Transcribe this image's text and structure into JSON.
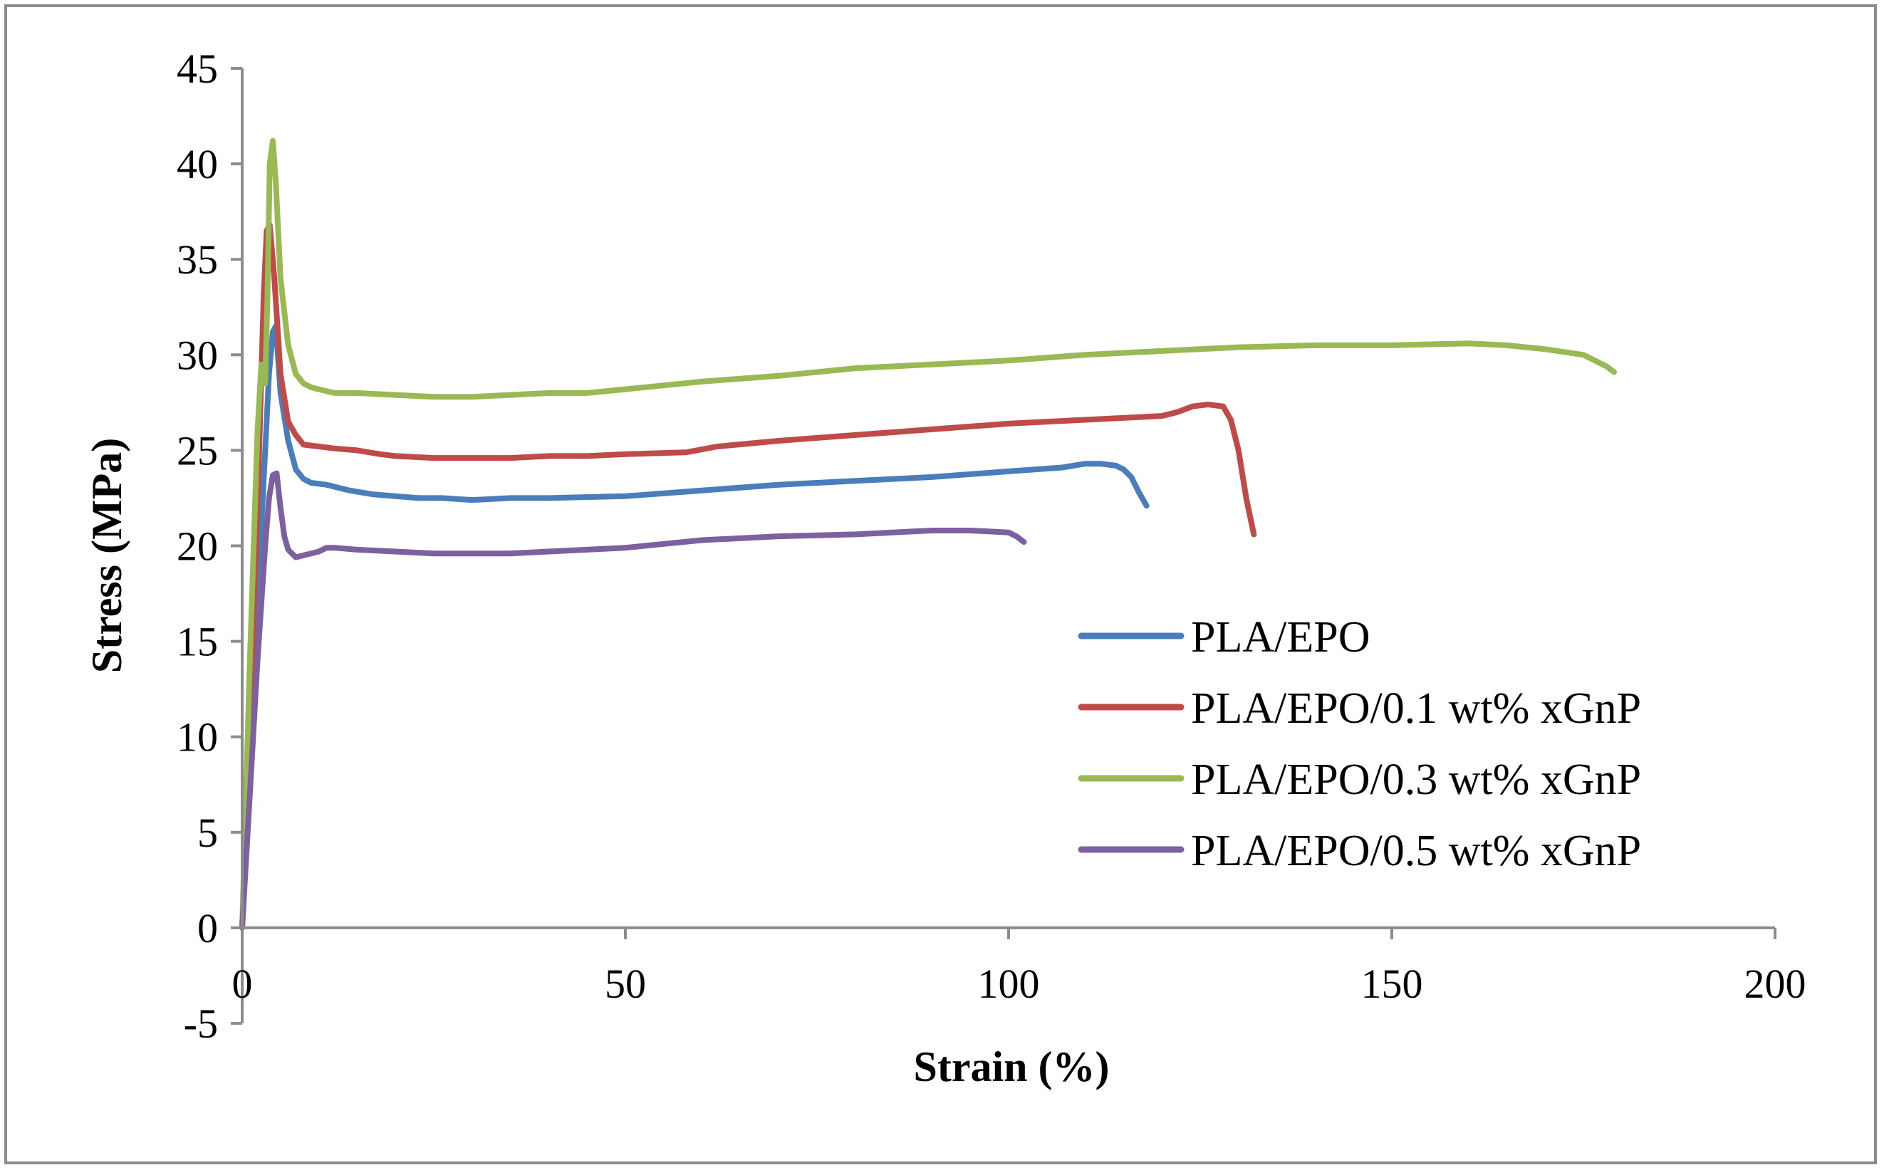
{
  "chart_data": {
    "type": "line",
    "title": "",
    "xlabel": "Strain (%)",
    "ylabel": "Stress (MPa)",
    "xlim": [
      0,
      200
    ],
    "ylim": [
      -5,
      45
    ],
    "xticks": [
      0,
      50,
      100,
      150,
      200
    ],
    "yticks": [
      -5,
      0,
      5,
      10,
      15,
      20,
      25,
      30,
      35,
      40,
      45
    ],
    "grid": false,
    "legend_position": "right",
    "series": [
      {
        "name": "PLA/EPO",
        "color": "#4a7ebb",
        "x": [
          0,
          1,
          2,
          3,
          3.5,
          4,
          4.4,
          5,
          6,
          7,
          8,
          9,
          11,
          12,
          14,
          17,
          20,
          23,
          26,
          30,
          35,
          40,
          50,
          60,
          70,
          80,
          90,
          100,
          107,
          110,
          112,
          114,
          115,
          116,
          117,
          118
        ],
        "y": [
          0,
          8,
          17,
          25,
          29,
          31.2,
          31.5,
          28,
          25.5,
          24,
          23.5,
          23.3,
          23.2,
          23.1,
          22.9,
          22.7,
          22.6,
          22.5,
          22.5,
          22.4,
          22.5,
          22.5,
          22.6,
          22.9,
          23.2,
          23.4,
          23.6,
          23.9,
          24.1,
          24.3,
          24.3,
          24.2,
          24.0,
          23.6,
          22.8,
          22.1
        ]
      },
      {
        "name": "PLA/EPO/0.1 wt% xGnP",
        "color": "#be4b48",
        "x": [
          0,
          1,
          2,
          2.8,
          3.2,
          3.6,
          4.2,
          5,
          6,
          7,
          8,
          10,
          12,
          15,
          18,
          20,
          25,
          30,
          35,
          40,
          45,
          50,
          58,
          62,
          70,
          80,
          90,
          100,
          110,
          120,
          122,
          124,
          126,
          128,
          129,
          130,
          131,
          132
        ],
        "y": [
          0,
          10,
          22,
          33,
          36.5,
          36.8,
          34,
          29,
          26.5,
          25.8,
          25.3,
          25.2,
          25.1,
          25.0,
          24.8,
          24.7,
          24.6,
          24.6,
          24.6,
          24.7,
          24.7,
          24.8,
          24.9,
          25.2,
          25.5,
          25.8,
          26.1,
          26.4,
          26.6,
          26.8,
          27.0,
          27.3,
          27.4,
          27.3,
          26.6,
          25.0,
          22.5,
          20.6
        ]
      },
      {
        "name": "PLA/EPO/0.3 wt% xGnP",
        "color": "#98b954",
        "x": [
          0,
          1,
          2,
          2.5,
          3,
          3.3,
          3.6,
          4,
          4.4,
          5,
          6,
          7,
          8,
          9,
          10,
          12,
          15,
          20,
          25,
          30,
          35,
          40,
          45,
          50,
          60,
          70,
          80,
          90,
          100,
          110,
          120,
          130,
          140,
          150,
          160,
          165,
          170,
          175,
          178,
          179
        ],
        "y": [
          0,
          14,
          26,
          29.5,
          28.5,
          33,
          40,
          41.2,
          39,
          34,
          30.5,
          29,
          28.5,
          28.3,
          28.2,
          28.0,
          28.0,
          27.9,
          27.8,
          27.8,
          27.9,
          28.0,
          28.0,
          28.2,
          28.6,
          28.9,
          29.3,
          29.5,
          29.7,
          30.0,
          30.2,
          30.4,
          30.5,
          30.5,
          30.6,
          30.5,
          30.3,
          30.0,
          29.4,
          29.1
        ]
      },
      {
        "name": "PLA/EPO/0.5 wt% xGnP",
        "color": "#7d60a0",
        "x": [
          0,
          1,
          2,
          3,
          3.5,
          4,
          4.5,
          5,
          5.5,
          6,
          7,
          8,
          9,
          10,
          11,
          12,
          15,
          20,
          25,
          30,
          35,
          40,
          45,
          50,
          55,
          60,
          70,
          80,
          90,
          95,
          100,
          101,
          102
        ],
        "y": [
          0,
          7,
          14,
          20,
          22.5,
          23.7,
          23.8,
          22,
          20.5,
          19.8,
          19.4,
          19.5,
          19.6,
          19.7,
          19.9,
          19.9,
          19.8,
          19.7,
          19.6,
          19.6,
          19.6,
          19.7,
          19.8,
          19.9,
          20.1,
          20.3,
          20.5,
          20.6,
          20.8,
          20.8,
          20.7,
          20.5,
          20.2
        ]
      }
    ]
  }
}
